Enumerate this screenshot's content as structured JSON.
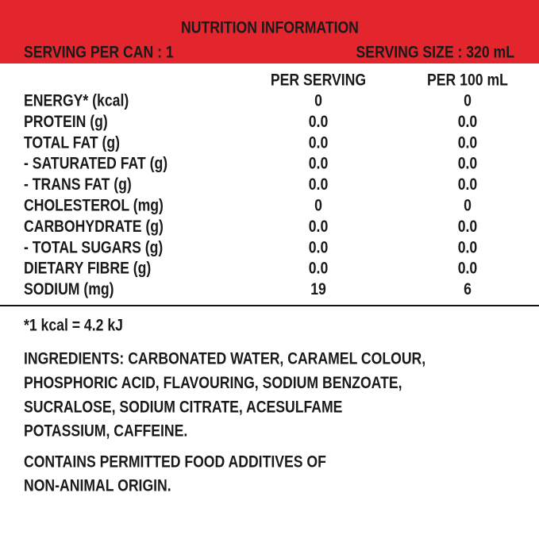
{
  "header": {
    "title": "NUTRITION INFORMATION",
    "serving_per_can": "SERVING PER CAN : 1",
    "serving_size": "SERVING SIZE : 320 mL"
  },
  "table": {
    "columns": [
      "PER SERVING",
      "PER 100 mL"
    ],
    "rows": [
      [
        "ENERGY* (kcal)",
        "0",
        "0"
      ],
      [
        "PROTEIN (g)",
        "0.0",
        "0.0"
      ],
      [
        "TOTAL FAT (g)",
        "0.0",
        "0.0"
      ],
      [
        "- SATURATED FAT (g)",
        "0.0",
        "0.0"
      ],
      [
        "- TRANS FAT (g)",
        "0.0",
        "0.0"
      ],
      [
        "CHOLESTEROL (mg)",
        "0",
        "0"
      ],
      [
        "CARBOHYDRATE (g)",
        "0.0",
        "0.0"
      ],
      [
        "- TOTAL SUGARS (g)",
        "0.0",
        "0.0"
      ],
      [
        "DIETARY FIBRE (g)",
        "0.0",
        "0.0"
      ],
      [
        "SODIUM (mg)",
        "19",
        "6"
      ]
    ]
  },
  "footnote": "*1 kcal = 4.2 kJ",
  "ingredients": [
    "INGREDIENTS: CARBONATED WATER, CARAMEL COLOUR,",
    "PHOSPHORIC ACID, FLAVOURING, SODIUM BENZOATE,",
    "SUCRALOSE, SODIUM CITRATE, ACESULFAME",
    "POTASSIUM, CAFFEINE."
  ],
  "additives": [
    "CONTAINS PERMITTED FOOD ADDITIVES OF",
    "NON-ANIMAL ORIGIN."
  ]
}
